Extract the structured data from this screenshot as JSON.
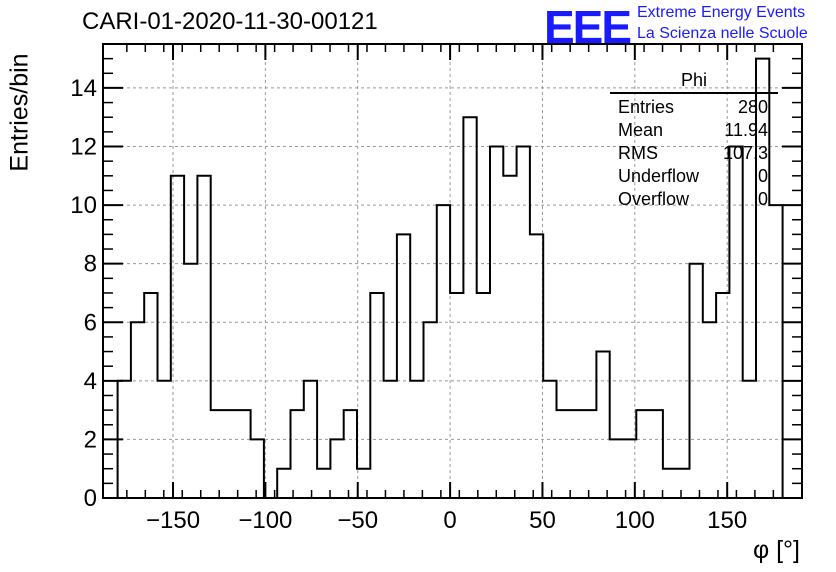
{
  "title": "CARI-01-2020-11-30-00121",
  "logo": {
    "text": "EEE",
    "line1": "Extreme Energy Events",
    "line2": "La Scienza nelle Scuole",
    "color": "#1a1aff"
  },
  "stats": {
    "name": "Phi",
    "rows": [
      {
        "label": "Entries",
        "value": "280"
      },
      {
        "label": "Mean",
        "value": "11.94"
      },
      {
        "label": "RMS",
        "value": "107.3"
      },
      {
        "label": "Underflow",
        "value": "0"
      },
      {
        "label": "Overflow",
        "value": "0"
      }
    ]
  },
  "chart_data": {
    "type": "bar",
    "style": "step-histogram",
    "xlabel": "φ [°]",
    "ylabel": "Entries/bin",
    "xlim": [
      -180,
      180
    ],
    "ylim": [
      0,
      15.5
    ],
    "bin_width": 7.2,
    "x_ticks": [
      "−150",
      "−100",
      "−50",
      "0",
      "50",
      "100",
      "150"
    ],
    "y_ticks": [
      "0",
      "2",
      "4",
      "6",
      "8",
      "10",
      "12",
      "14"
    ],
    "grid": true,
    "line_color": "#000000",
    "values": [
      4,
      6,
      7,
      4,
      11,
      8,
      11,
      3,
      3,
      3,
      2,
      0,
      1,
      3,
      4,
      1,
      2,
      3,
      1,
      7,
      4,
      9,
      4,
      6,
      10,
      7,
      13,
      7,
      12,
      11,
      12,
      9,
      4,
      3,
      3,
      3,
      5,
      2,
      2,
      3,
      3,
      1,
      1,
      8,
      6,
      7,
      12,
      4,
      15,
      10
    ]
  }
}
